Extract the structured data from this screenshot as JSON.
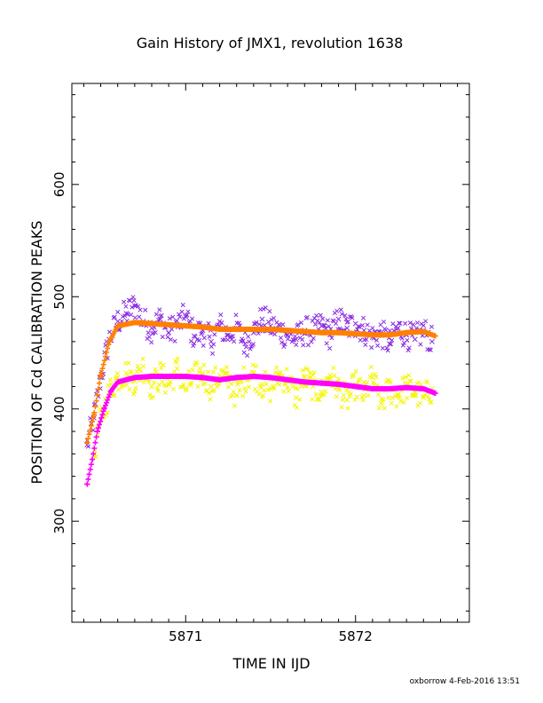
{
  "chart_data": {
    "type": "scatter",
    "title": "Gain History of JMX1, revolution 1638",
    "xlabel": "TIME IN IJD",
    "ylabel": "POSITION OF Cd CALIBRATION PEAKS",
    "xlim": [
      5870.33,
      5872.67
    ],
    "ylim": [
      210,
      690
    ],
    "x_ticks": [
      5871,
      5872
    ],
    "y_ticks": [
      300,
      400,
      500,
      600
    ],
    "grid": false,
    "colors": {
      "scatter_upper": "#8a2be2",
      "fit_upper": "#ff8000",
      "scatter_lower": "#f5f500",
      "fit_lower": "#ff00ff"
    },
    "x_range": [
      5870.42,
      5872.47
    ],
    "series": [
      {
        "marker": "x",
        "color": "#8a2be2",
        "points": [
          [
            5870.42,
            368
          ],
          [
            5870.46,
            392
          ],
          [
            5870.5,
            428
          ],
          [
            5870.55,
            462
          ],
          [
            5870.6,
            478
          ],
          [
            5870.65,
            485
          ],
          [
            5870.7,
            492
          ],
          [
            5870.75,
            478
          ],
          [
            5870.8,
            472
          ],
          [
            5870.85,
            480
          ],
          [
            5870.9,
            468
          ],
          [
            5870.95,
            475
          ],
          [
            5871.0,
            482
          ],
          [
            5871.05,
            465
          ],
          [
            5871.1,
            470
          ],
          [
            5871.15,
            460
          ],
          [
            5871.2,
            474
          ],
          [
            5871.25,
            466
          ],
          [
            5871.3,
            472
          ],
          [
            5871.35,
            458
          ],
          [
            5871.4,
            468
          ],
          [
            5871.45,
            480
          ],
          [
            5871.5,
            474
          ],
          [
            5871.55,
            470
          ],
          [
            5871.6,
            466
          ],
          [
            5871.65,
            462
          ],
          [
            5871.7,
            470
          ],
          [
            5871.75,
            468
          ],
          [
            5871.8,
            474
          ],
          [
            5871.85,
            466
          ],
          [
            5871.9,
            480
          ],
          [
            5871.95,
            472
          ],
          [
            5872.0,
            476
          ],
          [
            5872.05,
            470
          ],
          [
            5872.1,
            464
          ],
          [
            5872.15,
            468
          ],
          [
            5872.2,
            458
          ],
          [
            5872.25,
            472
          ],
          [
            5872.3,
            466
          ],
          [
            5872.35,
            462
          ],
          [
            5872.4,
            470
          ],
          [
            5872.45,
            460
          ]
        ]
      },
      {
        "marker": "+",
        "color": "#ff8000",
        "points": [
          [
            5870.42,
            370
          ],
          [
            5870.46,
            395
          ],
          [
            5870.5,
            430
          ],
          [
            5870.55,
            460
          ],
          [
            5870.6,
            474
          ],
          [
            5870.7,
            477
          ],
          [
            5870.8,
            476
          ],
          [
            5870.9,
            475
          ],
          [
            5871.0,
            474
          ],
          [
            5871.1,
            473
          ],
          [
            5871.2,
            471
          ],
          [
            5871.3,
            471
          ],
          [
            5871.4,
            471
          ],
          [
            5871.5,
            471
          ],
          [
            5871.6,
            470
          ],
          [
            5871.7,
            469
          ],
          [
            5871.8,
            468
          ],
          [
            5871.9,
            468
          ],
          [
            5872.0,
            467
          ],
          [
            5872.1,
            466
          ],
          [
            5872.2,
            466
          ],
          [
            5872.3,
            468
          ],
          [
            5872.4,
            469
          ],
          [
            5872.47,
            465
          ]
        ]
      },
      {
        "marker": "x",
        "color": "#f5f500",
        "points": [
          [
            5870.46,
            360
          ],
          [
            5870.5,
            390
          ],
          [
            5870.55,
            415
          ],
          [
            5870.6,
            428
          ],
          [
            5870.65,
            432
          ],
          [
            5870.7,
            425
          ],
          [
            5870.75,
            438
          ],
          [
            5870.8,
            420
          ],
          [
            5870.85,
            430
          ],
          [
            5870.9,
            422
          ],
          [
            5870.95,
            436
          ],
          [
            5871.0,
            418
          ],
          [
            5871.05,
            428
          ],
          [
            5871.1,
            432
          ],
          [
            5871.15,
            420
          ],
          [
            5871.2,
            430
          ],
          [
            5871.25,
            425
          ],
          [
            5871.3,
            412
          ],
          [
            5871.35,
            428
          ],
          [
            5871.4,
            432
          ],
          [
            5871.45,
            422
          ],
          [
            5871.5,
            418
          ],
          [
            5871.55,
            430
          ],
          [
            5871.6,
            426
          ],
          [
            5871.65,
            410
          ],
          [
            5871.7,
            428
          ],
          [
            5871.75,
            420
          ],
          [
            5871.8,
            415
          ],
          [
            5871.85,
            430
          ],
          [
            5871.9,
            418
          ],
          [
            5871.95,
            408
          ],
          [
            5872.0,
            422
          ],
          [
            5872.05,
            412
          ],
          [
            5872.1,
            428
          ],
          [
            5872.15,
            405
          ],
          [
            5872.2,
            418
          ],
          [
            5872.25,
            412
          ],
          [
            5872.3,
            420
          ],
          [
            5872.35,
            415
          ],
          [
            5872.4,
            410
          ],
          [
            5872.45,
            418
          ]
        ]
      },
      {
        "marker": "+",
        "color": "#ff00ff",
        "points": [
          [
            5870.42,
            333
          ],
          [
            5870.45,
            355
          ],
          [
            5870.48,
            380
          ],
          [
            5870.52,
            400
          ],
          [
            5870.56,
            416
          ],
          [
            5870.6,
            424
          ],
          [
            5870.7,
            428
          ],
          [
            5870.8,
            429
          ],
          [
            5870.9,
            429
          ],
          [
            5871.0,
            429
          ],
          [
            5871.1,
            428
          ],
          [
            5871.2,
            426
          ],
          [
            5871.3,
            428
          ],
          [
            5871.4,
            429
          ],
          [
            5871.5,
            428
          ],
          [
            5871.6,
            426
          ],
          [
            5871.7,
            424
          ],
          [
            5871.8,
            423
          ],
          [
            5871.9,
            422
          ],
          [
            5872.0,
            420
          ],
          [
            5872.1,
            418
          ],
          [
            5872.2,
            418
          ],
          [
            5872.3,
            419
          ],
          [
            5872.4,
            418
          ],
          [
            5872.47,
            414
          ]
        ]
      }
    ]
  },
  "footer": {
    "credit": "oxborrow  4-Feb-2016 13:51"
  }
}
